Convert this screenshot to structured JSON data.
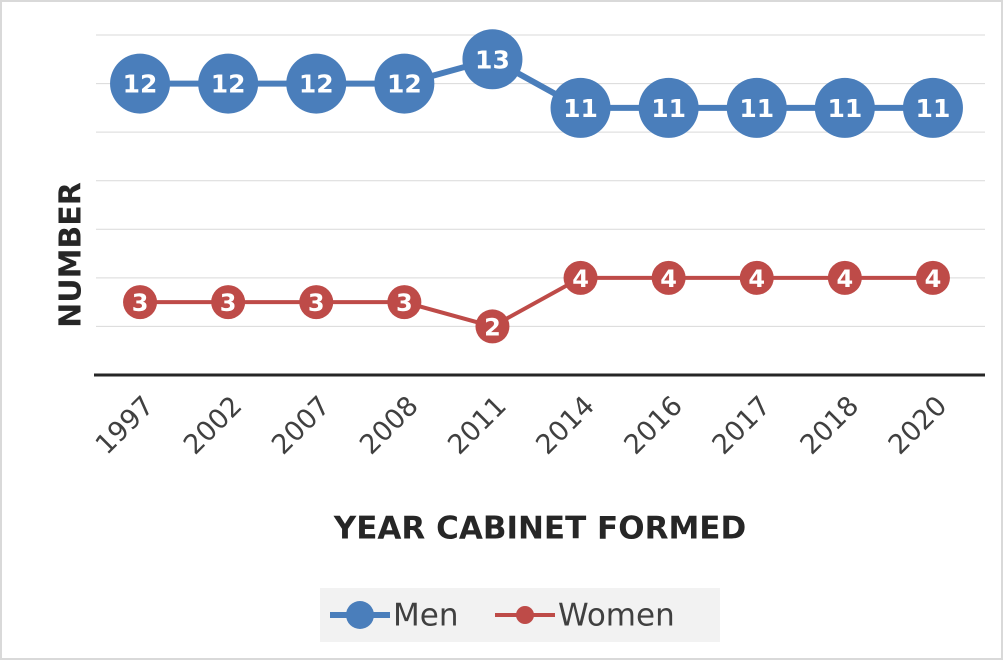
{
  "chart_data": {
    "type": "line",
    "x_label": "YEAR CABINET FORMED",
    "y_label": "NUMBER",
    "categories": [
      "1997",
      "2002",
      "2007",
      "2008",
      "2011",
      "2014",
      "2016",
      "2017",
      "2018",
      "2020"
    ],
    "series": [
      {
        "name": "Men",
        "color": "#4a7ebb",
        "values": [
          12,
          12,
          12,
          12,
          13,
          11,
          11,
          11,
          11,
          11
        ]
      },
      {
        "name": "Women",
        "color": "#be4b48",
        "values": [
          3,
          3,
          3,
          3,
          2,
          4,
          4,
          4,
          4,
          4
        ]
      }
    ],
    "ylim": [
      0,
      14
    ],
    "yticks": [
      0,
      2,
      4,
      6,
      8,
      10,
      12,
      14
    ],
    "grid": true,
    "legend": "bottom"
  }
}
